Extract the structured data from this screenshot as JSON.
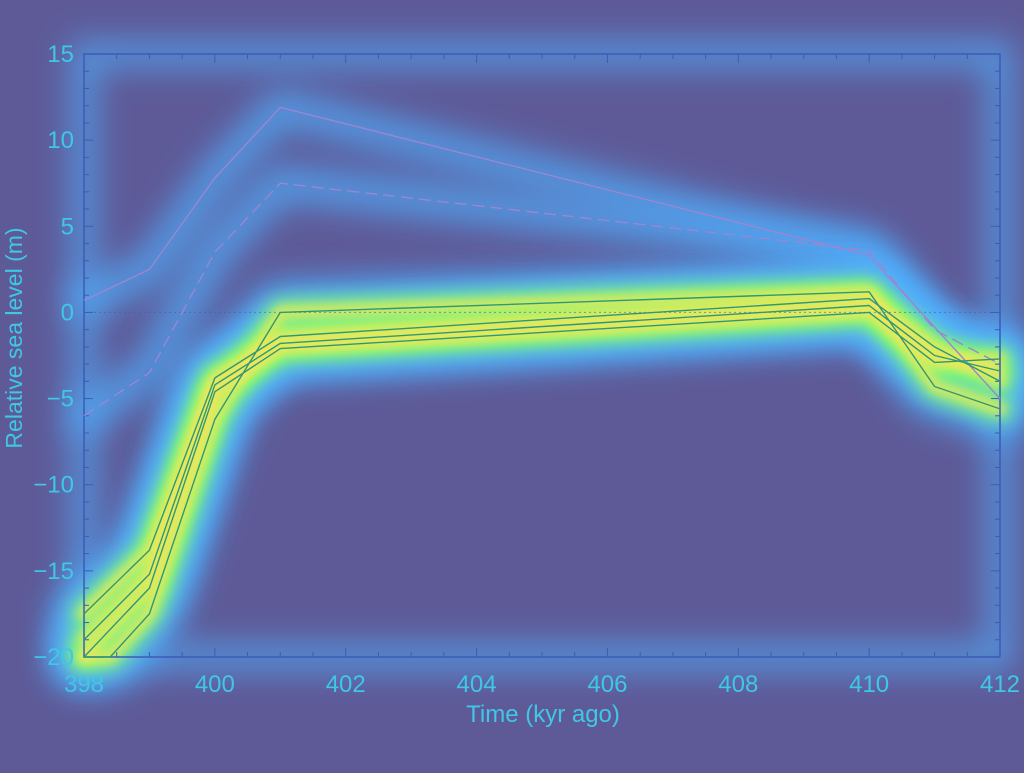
{
  "chart_data": {
    "type": "line",
    "title": "",
    "xlabel": "Time (kyr ago)",
    "ylabel": "Relative sea level (m)",
    "xlim": [
      398,
      412
    ],
    "ylim": [
      -20,
      15
    ],
    "xticks": [
      398,
      400,
      402,
      404,
      406,
      408,
      410,
      412
    ],
    "yticks": [
      15,
      10,
      5,
      0,
      -5,
      -10,
      -15,
      -20
    ],
    "grid": false,
    "legend": "none",
    "colors": {
      "background": "#5e5a98",
      "axis": "#3c5bb8",
      "tick_label": "#3fc7e6",
      "glow_outer": "#4fb0ff",
      "glow_mid": "#7fff66",
      "glow_core": "#f2e65a",
      "upper_line": "#9a86d2",
      "lower_line": "#2b9a78"
    },
    "series": [
      {
        "x": [
          398,
          399,
          400,
          401,
          410,
          412
        ],
        "y": [
          0.7,
          2.5,
          7.8,
          11.9,
          3.3,
          -5.0
        ],
        "style": "solid",
        "group": "upper"
      },
      {
        "x": [
          398,
          399,
          400,
          401,
          410,
          411,
          412
        ],
        "y": [
          -6.0,
          -3.5,
          3.5,
          7.5,
          3.6,
          -1.0,
          -3.0
        ],
        "style": "dashed",
        "group": "upper"
      },
      {
        "x": [
          398,
          398.4,
          399,
          400,
          401,
          410,
          411,
          412
        ],
        "y": [
          -20,
          -20,
          -17.5,
          -6.2,
          0,
          1.2,
          -4.3,
          -5.6
        ],
        "style": "solid",
        "group": "lower"
      },
      {
        "x": [
          398,
          399,
          400,
          401,
          410,
          411,
          412
        ],
        "y": [
          -17.5,
          -13.8,
          -3.8,
          -1.4,
          0.8,
          -2.0,
          -4.0
        ],
        "style": "solid",
        "group": "lower"
      },
      {
        "x": [
          398,
          399,
          400,
          401,
          410,
          411,
          412
        ],
        "y": [
          -19.0,
          -15.2,
          -4.2,
          -1.8,
          0.4,
          -2.5,
          -3.4
        ],
        "style": "solid",
        "group": "lower"
      },
      {
        "x": [
          398,
          399,
          400,
          401,
          410,
          411,
          412
        ],
        "y": [
          -20,
          -16.0,
          -4.6,
          -2.1,
          0,
          -2.9,
          -2.7
        ],
        "style": "solid",
        "group": "lower"
      }
    ]
  }
}
